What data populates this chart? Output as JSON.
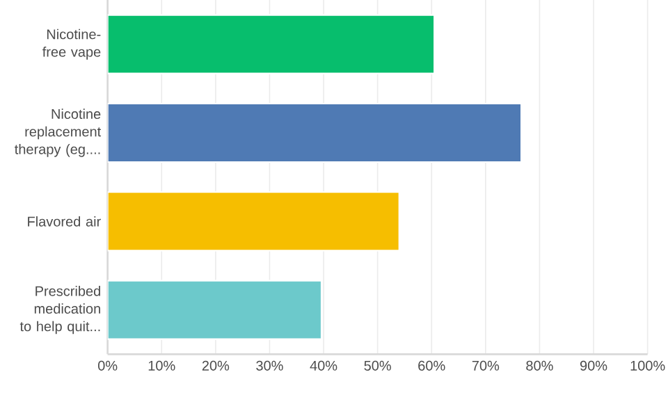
{
  "chart_data": {
    "type": "bar",
    "orientation": "horizontal",
    "categories": [
      "Nicotine-free vape",
      "Nicotine replacement therapy (eg....",
      "Flavored air",
      "Prescribed medication to help quit..."
    ],
    "values": [
      60.5,
      76.6,
      54.0,
      39.6
    ],
    "colors": [
      "#07be6d",
      "#4f7ab4",
      "#f6be00",
      "#6cc9cb"
    ],
    "xlim": [
      0,
      100
    ],
    "xticks": [
      {
        "value": 0,
        "label": "0%"
      },
      {
        "value": 10,
        "label": "10%"
      },
      {
        "value": 20,
        "label": "20%"
      },
      {
        "value": 30,
        "label": "30%"
      },
      {
        "value": 40,
        "label": "40%"
      },
      {
        "value": 50,
        "label": "50%"
      },
      {
        "value": 60,
        "label": "60%"
      },
      {
        "value": 70,
        "label": "70%"
      },
      {
        "value": 80,
        "label": "80%"
      },
      {
        "value": 90,
        "label": "90%"
      },
      {
        "value": 100,
        "label": "100%"
      }
    ],
    "grid": "x"
  }
}
